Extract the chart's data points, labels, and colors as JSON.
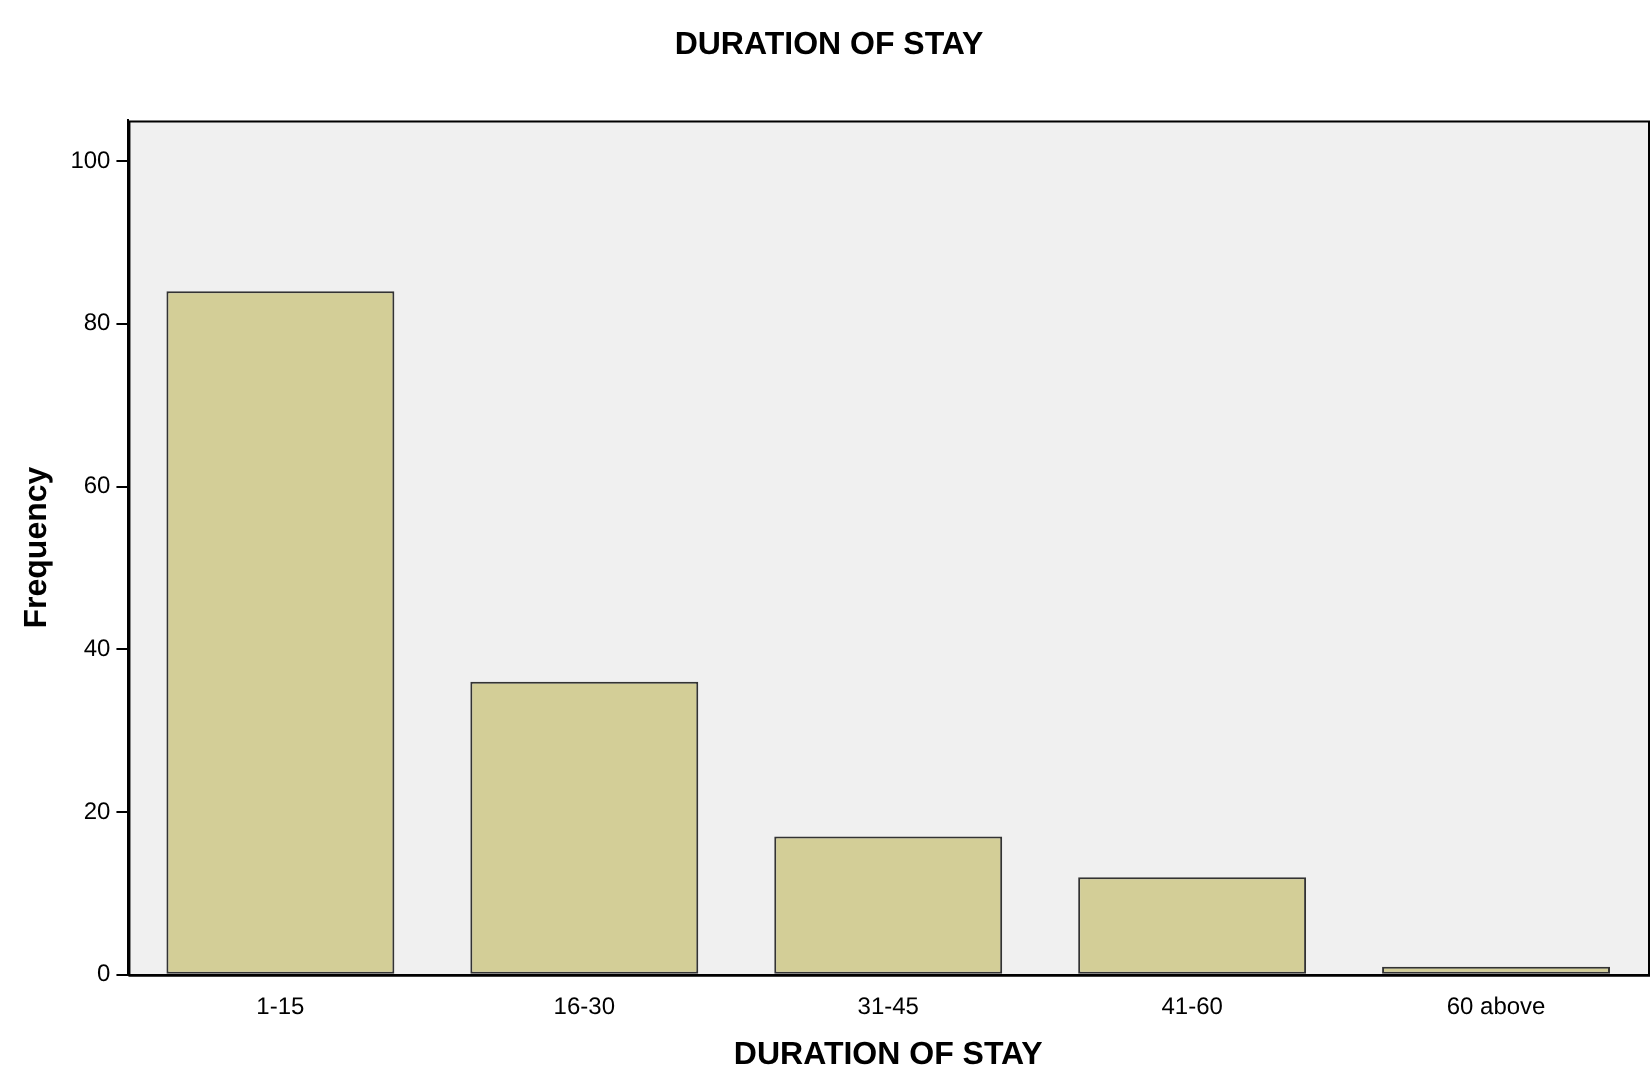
{
  "chart_data": {
    "type": "bar",
    "title": "DURATION OF STAY",
    "xlabel": "DURATION OF STAY",
    "ylabel": "Frequency",
    "categories": [
      "1-15",
      "16-30",
      "31-45",
      "41-60",
      "60 above"
    ],
    "values": [
      84,
      36,
      17,
      12,
      1
    ],
    "color": "#d3ce97",
    "ylim": [
      0,
      105
    ],
    "yticks": [
      0,
      20,
      40,
      60,
      80,
      100
    ],
    "grid": false,
    "legend": false
  }
}
